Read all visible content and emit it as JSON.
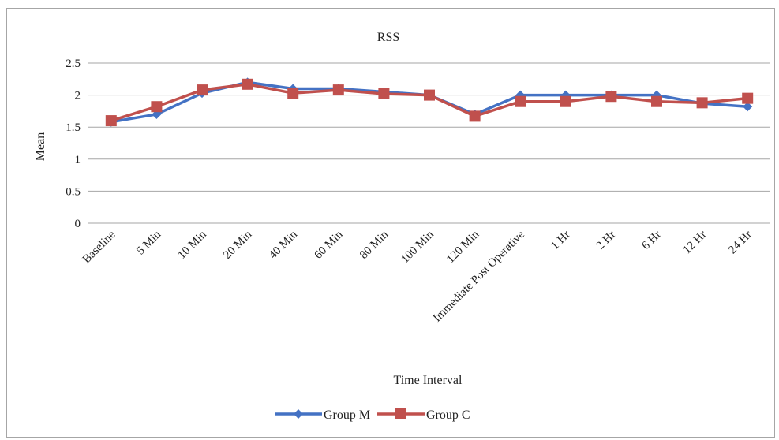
{
  "chart_data": {
    "type": "line",
    "title": "RSS",
    "xlabel": "Time Interval",
    "ylabel": "Mean",
    "ylim": [
      0,
      2.5
    ],
    "yticks": [
      "0",
      "0.5",
      "1",
      "1.5",
      "2",
      "2.5"
    ],
    "grid": true,
    "legend_position": "bottom",
    "categories": [
      "Baseline",
      "5 Min",
      "10 Min",
      "20 Min",
      "40 Min",
      "60 Min",
      "80 Min",
      "100 Min",
      "120 Min",
      "Immediate Post Operative",
      "1 Hr",
      "2 Hr",
      "6 Hr",
      "12 Hr",
      "24 Hr"
    ],
    "series": [
      {
        "name": "Group M",
        "color": "#4472c4",
        "marker": "diamond",
        "values": [
          1.58,
          1.7,
          2.03,
          2.2,
          2.1,
          2.1,
          2.05,
          2.0,
          1.7,
          2.0,
          2.0,
          2.0,
          2.0,
          1.87,
          1.82
        ]
      },
      {
        "name": "Group C",
        "color": "#c0504d",
        "marker": "square",
        "values": [
          1.6,
          1.82,
          2.08,
          2.17,
          2.03,
          2.08,
          2.02,
          2.0,
          1.67,
          1.9,
          1.9,
          1.98,
          1.9,
          1.88,
          1.95
        ]
      }
    ]
  }
}
